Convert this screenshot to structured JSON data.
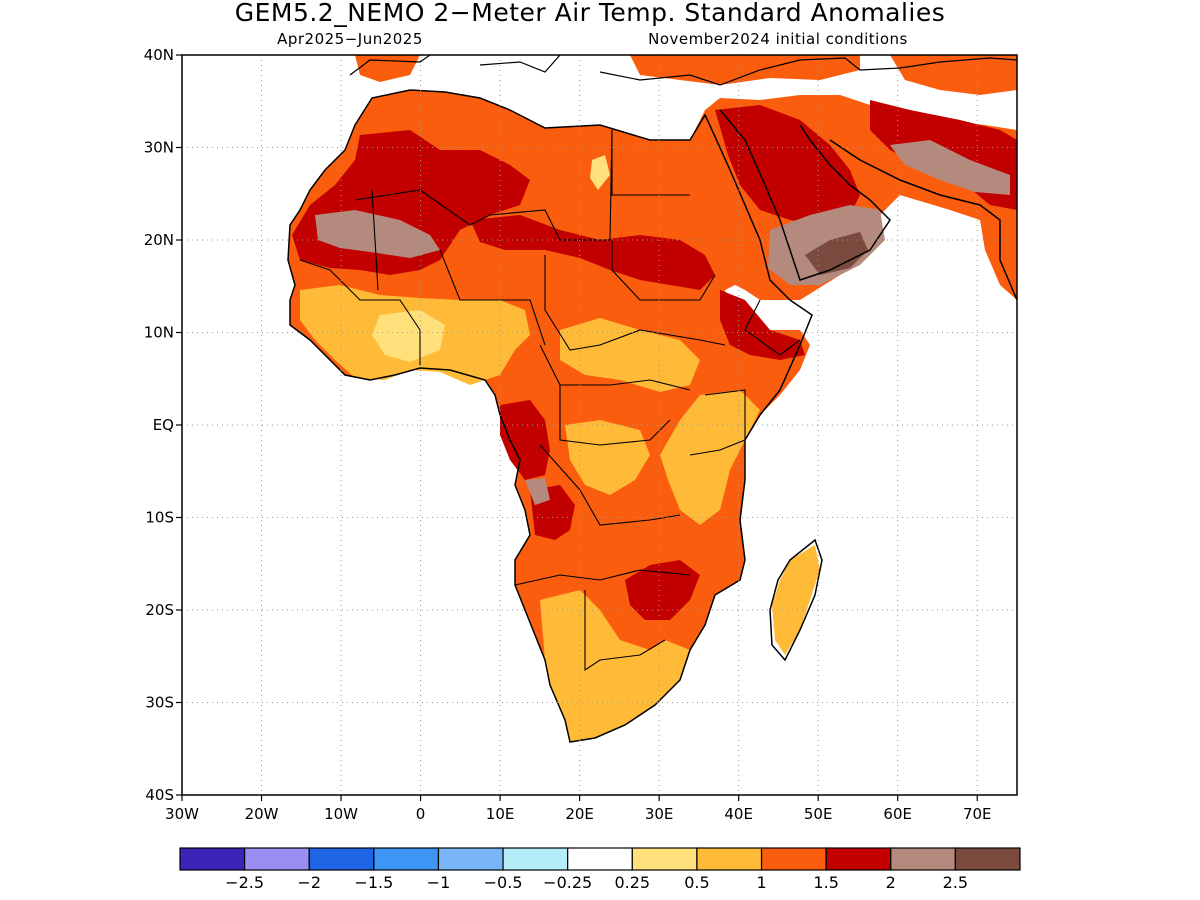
{
  "title": "GEM5.2_NEMO 2−Meter Air Temp. Standard Anomalies",
  "subtitle_left": "Apr2025−Jun2025",
  "subtitle_right": "November2024 initial conditions",
  "map": {
    "lon_range": [
      -30,
      75
    ],
    "lat_range": [
      -40,
      40
    ],
    "lat_ticks": [
      {
        "value": 40,
        "label": "40N"
      },
      {
        "value": 30,
        "label": "30N"
      },
      {
        "value": 20,
        "label": "20N"
      },
      {
        "value": 10,
        "label": "10N"
      },
      {
        "value": 0,
        "label": "EQ"
      },
      {
        "value": -10,
        "label": "10S"
      },
      {
        "value": -20,
        "label": "20S"
      },
      {
        "value": -30,
        "label": "30S"
      },
      {
        "value": -40,
        "label": "40S"
      }
    ],
    "lon_ticks": [
      {
        "value": -30,
        "label": "30W"
      },
      {
        "value": -20,
        "label": "20W"
      },
      {
        "value": -10,
        "label": "10W"
      },
      {
        "value": 0,
        "label": "0"
      },
      {
        "value": 10,
        "label": "10E"
      },
      {
        "value": 20,
        "label": "20E"
      },
      {
        "value": 30,
        "label": "30E"
      },
      {
        "value": 40,
        "label": "40E"
      },
      {
        "value": 50,
        "label": "50E"
      },
      {
        "value": 60,
        "label": "60E"
      },
      {
        "value": 70,
        "label": "70E"
      }
    ],
    "grid": true
  },
  "colorbar": {
    "colors": [
      "#3a25b8",
      "#9b8ef3",
      "#1e64e5",
      "#3d96f3",
      "#78b6f7",
      "#b4ecf8",
      "#ffffff",
      "#ffe07a",
      "#ffba38",
      "#fa5d0e",
      "#c20000",
      "#b48a7e",
      "#7a4a3e"
    ],
    "labels": [
      "−2.5",
      "−2",
      "−1.5",
      "−1",
      "−0.5",
      "−0.25",
      "0.25",
      "0.5",
      "1",
      "1.5",
      "2",
      "2.5"
    ]
  }
}
